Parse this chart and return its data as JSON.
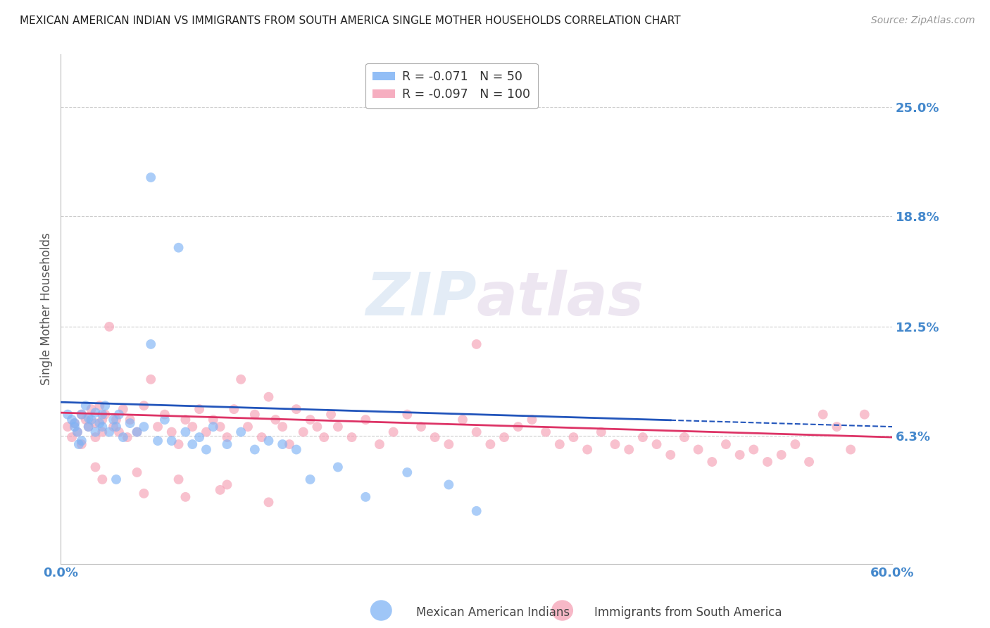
{
  "title": "MEXICAN AMERICAN INDIAN VS IMMIGRANTS FROM SOUTH AMERICA SINGLE MOTHER HOUSEHOLDS CORRELATION CHART",
  "source": "Source: ZipAtlas.com",
  "ylabel": "Single Mother Households",
  "ytick_labels": [
    "6.3%",
    "12.5%",
    "18.8%",
    "25.0%"
  ],
  "ytick_values": [
    0.063,
    0.125,
    0.188,
    0.25
  ],
  "xlim": [
    0.0,
    0.6
  ],
  "ylim": [
    -0.01,
    0.28
  ],
  "legend1_r": "-0.071",
  "legend1_n": "50",
  "legend2_r": "-0.097",
  "legend2_n": "100",
  "legend1_color": "#7fb3f5",
  "legend2_color": "#f5a0b5",
  "trendline1_color": "#2255bb",
  "trendline2_color": "#dd3366",
  "trendline1_x0": 0.0,
  "trendline1_y0": 0.082,
  "trendline1_x1": 0.6,
  "trendline1_y1": 0.068,
  "trendline2_x0": 0.0,
  "trendline2_y0": 0.076,
  "trendline2_x1": 0.6,
  "trendline2_y1": 0.062,
  "trendline1_dash_x0": 0.44,
  "trendline1_dash_x1": 0.6,
  "watermark_text": "ZIPatlas",
  "background_color": "#ffffff",
  "grid_color": "#cccccc",
  "title_color": "#222222",
  "axis_label_color": "#4488cc",
  "marker_size": 100,
  "scatter1_x": [
    0.005,
    0.008,
    0.01,
    0.01,
    0.012,
    0.013,
    0.015,
    0.015,
    0.018,
    0.02,
    0.02,
    0.022,
    0.025,
    0.025,
    0.028,
    0.03,
    0.03,
    0.032,
    0.035,
    0.038,
    0.04,
    0.042,
    0.045,
    0.05,
    0.055,
    0.06,
    0.065,
    0.07,
    0.075,
    0.08,
    0.085,
    0.09,
    0.095,
    0.1,
    0.105,
    0.11,
    0.12,
    0.13,
    0.14,
    0.15,
    0.16,
    0.17,
    0.18,
    0.2,
    0.22,
    0.25,
    0.28,
    0.3,
    0.065,
    0.04
  ],
  "scatter1_y": [
    0.075,
    0.072,
    0.068,
    0.07,
    0.065,
    0.058,
    0.075,
    0.06,
    0.08,
    0.073,
    0.068,
    0.072,
    0.076,
    0.065,
    0.07,
    0.075,
    0.068,
    0.08,
    0.065,
    0.072,
    0.068,
    0.075,
    0.062,
    0.07,
    0.065,
    0.068,
    0.115,
    0.06,
    0.072,
    0.06,
    0.17,
    0.065,
    0.058,
    0.062,
    0.055,
    0.068,
    0.058,
    0.065,
    0.055,
    0.06,
    0.058,
    0.055,
    0.038,
    0.045,
    0.028,
    0.042,
    0.035,
    0.02,
    0.21,
    0.038
  ],
  "scatter2_x": [
    0.005,
    0.008,
    0.01,
    0.012,
    0.015,
    0.015,
    0.018,
    0.02,
    0.022,
    0.025,
    0.025,
    0.028,
    0.03,
    0.03,
    0.032,
    0.035,
    0.038,
    0.04,
    0.042,
    0.045,
    0.048,
    0.05,
    0.055,
    0.06,
    0.065,
    0.07,
    0.075,
    0.08,
    0.085,
    0.09,
    0.095,
    0.1,
    0.105,
    0.11,
    0.115,
    0.12,
    0.125,
    0.13,
    0.135,
    0.14,
    0.145,
    0.15,
    0.155,
    0.16,
    0.165,
    0.17,
    0.175,
    0.18,
    0.185,
    0.19,
    0.195,
    0.2,
    0.21,
    0.22,
    0.23,
    0.24,
    0.25,
    0.26,
    0.27,
    0.28,
    0.29,
    0.3,
    0.31,
    0.32,
    0.33,
    0.34,
    0.35,
    0.36,
    0.37,
    0.38,
    0.39,
    0.4,
    0.41,
    0.42,
    0.43,
    0.44,
    0.45,
    0.46,
    0.47,
    0.48,
    0.49,
    0.5,
    0.51,
    0.52,
    0.53,
    0.54,
    0.55,
    0.56,
    0.57,
    0.58,
    0.03,
    0.06,
    0.09,
    0.12,
    0.15,
    0.025,
    0.055,
    0.085,
    0.115,
    0.3
  ],
  "scatter2_y": [
    0.068,
    0.062,
    0.07,
    0.065,
    0.075,
    0.058,
    0.072,
    0.068,
    0.078,
    0.07,
    0.062,
    0.08,
    0.072,
    0.065,
    0.075,
    0.125,
    0.068,
    0.072,
    0.065,
    0.078,
    0.062,
    0.072,
    0.065,
    0.08,
    0.095,
    0.068,
    0.075,
    0.065,
    0.058,
    0.072,
    0.068,
    0.078,
    0.065,
    0.072,
    0.068,
    0.062,
    0.078,
    0.095,
    0.068,
    0.075,
    0.062,
    0.085,
    0.072,
    0.068,
    0.058,
    0.078,
    0.065,
    0.072,
    0.068,
    0.062,
    0.075,
    0.068,
    0.062,
    0.072,
    0.058,
    0.065,
    0.075,
    0.068,
    0.062,
    0.058,
    0.072,
    0.065,
    0.058,
    0.062,
    0.068,
    0.072,
    0.065,
    0.058,
    0.062,
    0.055,
    0.065,
    0.058,
    0.055,
    0.062,
    0.058,
    0.052,
    0.062,
    0.055,
    0.048,
    0.058,
    0.052,
    0.055,
    0.048,
    0.052,
    0.058,
    0.048,
    0.075,
    0.068,
    0.055,
    0.075,
    0.038,
    0.03,
    0.028,
    0.035,
    0.025,
    0.045,
    0.042,
    0.038,
    0.032,
    0.115
  ]
}
